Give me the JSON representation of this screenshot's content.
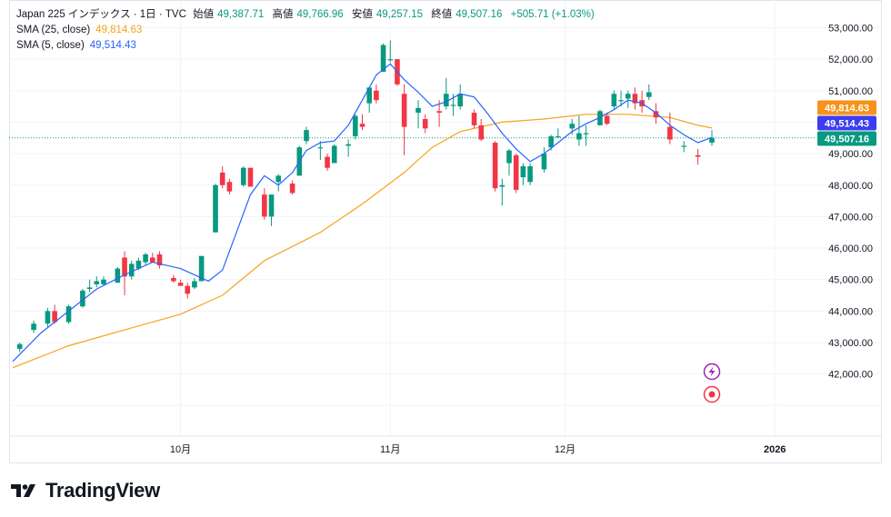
{
  "header": {
    "symbol": "Japan 225 インデックス · 1日 · TVC",
    "open_label": "始値",
    "open_value": "49,387.71",
    "high_label": "高値",
    "high_value": "49,766.96",
    "low_label": "安値",
    "low_value": "49,257.15",
    "close_label": "終値",
    "close_value": "49,507.16",
    "change": "+505.71 (+1.03%)"
  },
  "indicators": {
    "sma25_label": "SMA (25, close)",
    "sma25_value": "49,814.63",
    "sma5_label": "SMA (5, close)",
    "sma5_value": "49,514.43"
  },
  "price_tags": [
    {
      "text": "49,814.63",
      "color": "#f7931a"
    },
    {
      "text": "49,514.43",
      "color": "#3c3cf0"
    },
    {
      "text": "49,507.16",
      "color": "#089981"
    }
  ],
  "footer": {
    "brand": "TradingView"
  },
  "colors": {
    "up": "#089981",
    "down": "#f23645",
    "sma25": "#f7a21b",
    "sma5": "#2962ff"
  },
  "chart_data": {
    "type": "candlestick",
    "y_ticks": [
      "53,000.00",
      "52,000.00",
      "51,000.00",
      "50,000.00",
      "49,000.00",
      "48,000.00",
      "47,000.00",
      "46,000.00",
      "45,000.00",
      "44,000.00",
      "43,000.00",
      "42,000.00"
    ],
    "y_tick_values": [
      53000,
      52000,
      51000,
      50000,
      49000,
      48000,
      47000,
      46000,
      45000,
      44000,
      43000,
      42000
    ],
    "ylim": [
      41000,
      53500
    ],
    "x_ticks": [
      {
        "label": "10月",
        "index": 24
      },
      {
        "label": "11月",
        "index": 54
      },
      {
        "label": "12月",
        "index": 79
      },
      {
        "label": "2026",
        "index": 109
      }
    ],
    "x_range": [
      0,
      120
    ],
    "candles": [
      [
        42800,
        43000,
        42700,
        42950
      ],
      [
        43400,
        43700,
        43300,
        43600
      ],
      [
        43600,
        44100,
        43500,
        44000
      ],
      [
        44000,
        44200,
        43600,
        43650
      ],
      [
        43650,
        44200,
        43600,
        44150
      ],
      [
        44150,
        44700,
        44100,
        44650
      ],
      [
        44700,
        45000,
        44600,
        44750
      ],
      [
        44850,
        45100,
        44750,
        44950
      ],
      [
        44850,
        45100,
        44800,
        45000
      ],
      [
        44900,
        45400,
        44900,
        45350
      ],
      [
        45700,
        45900,
        44500,
        45100
      ],
      [
        45100,
        45600,
        45000,
        45500
      ],
      [
        45350,
        45700,
        45300,
        45600
      ],
      [
        45550,
        45850,
        45450,
        45800
      ],
      [
        45700,
        45850,
        45550,
        45550
      ],
      [
        45800,
        45900,
        45350,
        45450
      ],
      [
        45050,
        45150,
        44900,
        44950
      ],
      [
        44900,
        45000,
        44800,
        44800
      ],
      [
        44800,
        44900,
        44400,
        44550
      ],
      [
        44750,
        45050,
        44700,
        44950
      ],
      [
        44950,
        45750,
        44950,
        45750
      ],
      [
        46500,
        48050,
        46500,
        48000
      ],
      [
        48400,
        48600,
        47900,
        48000
      ],
      [
        48100,
        48200,
        47700,
        47800
      ],
      [
        48000,
        48600,
        47950,
        48550
      ],
      [
        48550,
        48550,
        47950,
        47950
      ],
      [
        47700,
        47900,
        46900,
        47000
      ],
      [
        47000,
        47700,
        46700,
        47700
      ],
      [
        48100,
        48350,
        47800,
        48300
      ],
      [
        48050,
        48150,
        47700,
        47750
      ],
      [
        48300,
        49250,
        48300,
        49200
      ],
      [
        49400,
        49850,
        49300,
        49750
      ],
      [
        49200,
        49400,
        48800,
        49200
      ],
      [
        48900,
        49000,
        48450,
        48550
      ],
      [
        48700,
        49300,
        48700,
        49250
      ],
      [
        49250,
        49450,
        48900,
        49300
      ],
      [
        49550,
        50250,
        49450,
        50200
      ],
      [
        49950,
        50250,
        49750,
        49850
      ],
      [
        50600,
        51100,
        50300,
        51100
      ],
      [
        51000,
        51200,
        50600,
        50700
      ],
      [
        51600,
        52500,
        51600,
        52450
      ],
      [
        52000,
        52600,
        51900,
        52000
      ],
      [
        52000,
        52000,
        51150,
        51200
      ],
      [
        50900,
        51200,
        48950,
        49850
      ],
      [
        50300,
        50700,
        49800,
        50450
      ],
      [
        50100,
        50250,
        49650,
        49800
      ],
      [
        50350,
        50700,
        49850,
        50300
      ],
      [
        50500,
        51400,
        50400,
        50900
      ],
      [
        50550,
        50900,
        50200,
        50550
      ],
      [
        50500,
        51200,
        50400,
        50900
      ],
      [
        50300,
        50400,
        49800,
        49900
      ],
      [
        49900,
        50100,
        49400,
        49450
      ],
      [
        49350,
        49400,
        47800,
        47900
      ],
      [
        47950,
        48200,
        47350,
        48000
      ],
      [
        48700,
        49150,
        48300,
        49100
      ],
      [
        48950,
        49000,
        47750,
        47850
      ],
      [
        48250,
        48700,
        48000,
        48600
      ],
      [
        48100,
        48700,
        48000,
        48600
      ],
      [
        48500,
        49200,
        48400,
        49000
      ],
      [
        49200,
        49600,
        49100,
        49550
      ],
      [
        49550,
        49800,
        49500,
        49550
      ],
      [
        49800,
        50100,
        49600,
        49950
      ],
      [
        49450,
        50200,
        49250,
        49650
      ],
      [
        49650,
        49900,
        49250,
        49650
      ],
      [
        49900,
        50400,
        49900,
        50350
      ],
      [
        50200,
        50300,
        49900,
        49950
      ],
      [
        50500,
        51000,
        50400,
        50900
      ],
      [
        50700,
        51000,
        50500,
        50700
      ],
      [
        50750,
        51000,
        50450,
        50900
      ],
      [
        50900,
        51100,
        50400,
        50600
      ],
      [
        50700,
        51000,
        50300,
        50500
      ],
      [
        50800,
        51200,
        50700,
        50950
      ],
      [
        50350,
        50600,
        49950,
        50150
      ],
      [
        49850,
        50300,
        49300,
        49450
      ],
      [
        49250,
        49400,
        49050,
        49250
      ],
      [
        48950,
        49150,
        48650,
        48900
      ],
      [
        49350,
        49750,
        49250,
        49500
      ]
    ],
    "candle_x_indices": [
      1,
      3,
      5,
      6,
      8,
      10,
      11,
      12,
      13,
      15,
      16,
      17,
      18,
      19,
      20,
      21,
      23,
      24,
      25,
      26,
      27,
      29,
      30,
      31,
      33,
      34,
      36,
      37,
      38,
      40,
      41,
      42,
      44,
      45,
      46,
      48,
      49,
      50,
      51,
      52,
      53,
      54,
      55,
      56,
      58,
      59,
      61,
      62,
      63,
      64,
      66,
      67,
      69,
      70,
      71,
      72,
      73,
      74,
      76,
      77,
      78,
      80,
      81,
      82,
      84,
      85,
      86,
      87,
      88,
      89,
      90,
      91,
      92,
      94,
      96,
      98,
      100
    ],
    "sma25": [
      [
        0,
        42200
      ],
      [
        8,
        42900
      ],
      [
        16,
        43400
      ],
      [
        24,
        43900
      ],
      [
        30,
        44500
      ],
      [
        36,
        45600
      ],
      [
        44,
        46500
      ],
      [
        50,
        47400
      ],
      [
        56,
        48400
      ],
      [
        60,
        49200
      ],
      [
        64,
        49700
      ],
      [
        70,
        50000
      ],
      [
        76,
        50100
      ],
      [
        82,
        50250
      ],
      [
        88,
        50250
      ],
      [
        94,
        50150
      ],
      [
        98,
        49900
      ],
      [
        100,
        49815
      ]
    ],
    "sma5": [
      [
        0,
        42400
      ],
      [
        4,
        43300
      ],
      [
        8,
        44000
      ],
      [
        12,
        44700
      ],
      [
        16,
        45150
      ],
      [
        20,
        45550
      ],
      [
        24,
        45350
      ],
      [
        28,
        44950
      ],
      [
        30,
        45300
      ],
      [
        32,
        46500
      ],
      [
        34,
        47700
      ],
      [
        36,
        48300
      ],
      [
        38,
        48000
      ],
      [
        40,
        48400
      ],
      [
        42,
        49100
      ],
      [
        44,
        49350
      ],
      [
        46,
        49400
      ],
      [
        48,
        49900
      ],
      [
        50,
        50700
      ],
      [
        52,
        51500
      ],
      [
        54,
        51850
      ],
      [
        56,
        51350
      ],
      [
        58,
        50950
      ],
      [
        60,
        50500
      ],
      [
        62,
        50650
      ],
      [
        64,
        50900
      ],
      [
        66,
        50800
      ],
      [
        68,
        50250
      ],
      [
        70,
        49650
      ],
      [
        72,
        49150
      ],
      [
        74,
        48750
      ],
      [
        76,
        49000
      ],
      [
        78,
        49350
      ],
      [
        80,
        49700
      ],
      [
        82,
        49950
      ],
      [
        84,
        50150
      ],
      [
        86,
        50400
      ],
      [
        88,
        50700
      ],
      [
        90,
        50600
      ],
      [
        92,
        50300
      ],
      [
        94,
        49900
      ],
      [
        96,
        49600
      ],
      [
        98,
        49350
      ],
      [
        100,
        49514
      ]
    ]
  }
}
